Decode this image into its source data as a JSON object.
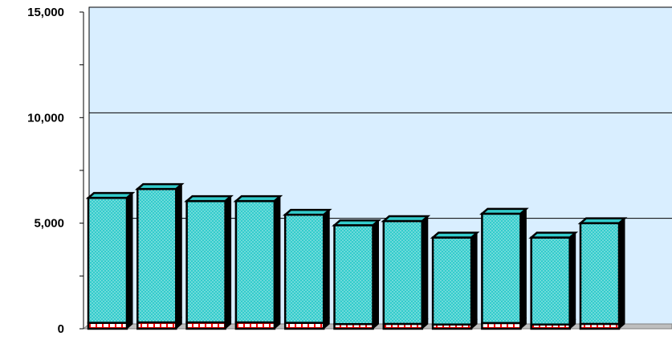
{
  "chart_data": {
    "type": "bar",
    "stacked": true,
    "three_d": true,
    "title": "",
    "xlabel": "",
    "ylabel": "",
    "ylim": [
      0,
      15000
    ],
    "y_ticks": [
      0,
      5000,
      10000,
      15000
    ],
    "y_tick_labels": [
      "0",
      "5,000",
      "10,000",
      "15,000"
    ],
    "grid": "horizontal",
    "legend": "none",
    "categories": [
      "",
      "",
      "",
      "",
      "",
      "",
      "",
      "",
      "",
      "",
      ""
    ],
    "series": [
      {
        "values": [
          280,
          300,
          300,
          300,
          280,
          220,
          230,
          200,
          270,
          200,
          230
        ],
        "color": "#ff0000",
        "pattern": "brick"
      },
      {
        "values": [
          5920,
          6320,
          5750,
          5750,
          5120,
          4680,
          4870,
          4120,
          5180,
          4120,
          4770
        ],
        "color": "#33cccc",
        "pattern": "dots"
      }
    ],
    "colors": {
      "plot_background": "#d9eeff",
      "floor": "#bfbfbf",
      "outline": "#000000"
    }
  }
}
